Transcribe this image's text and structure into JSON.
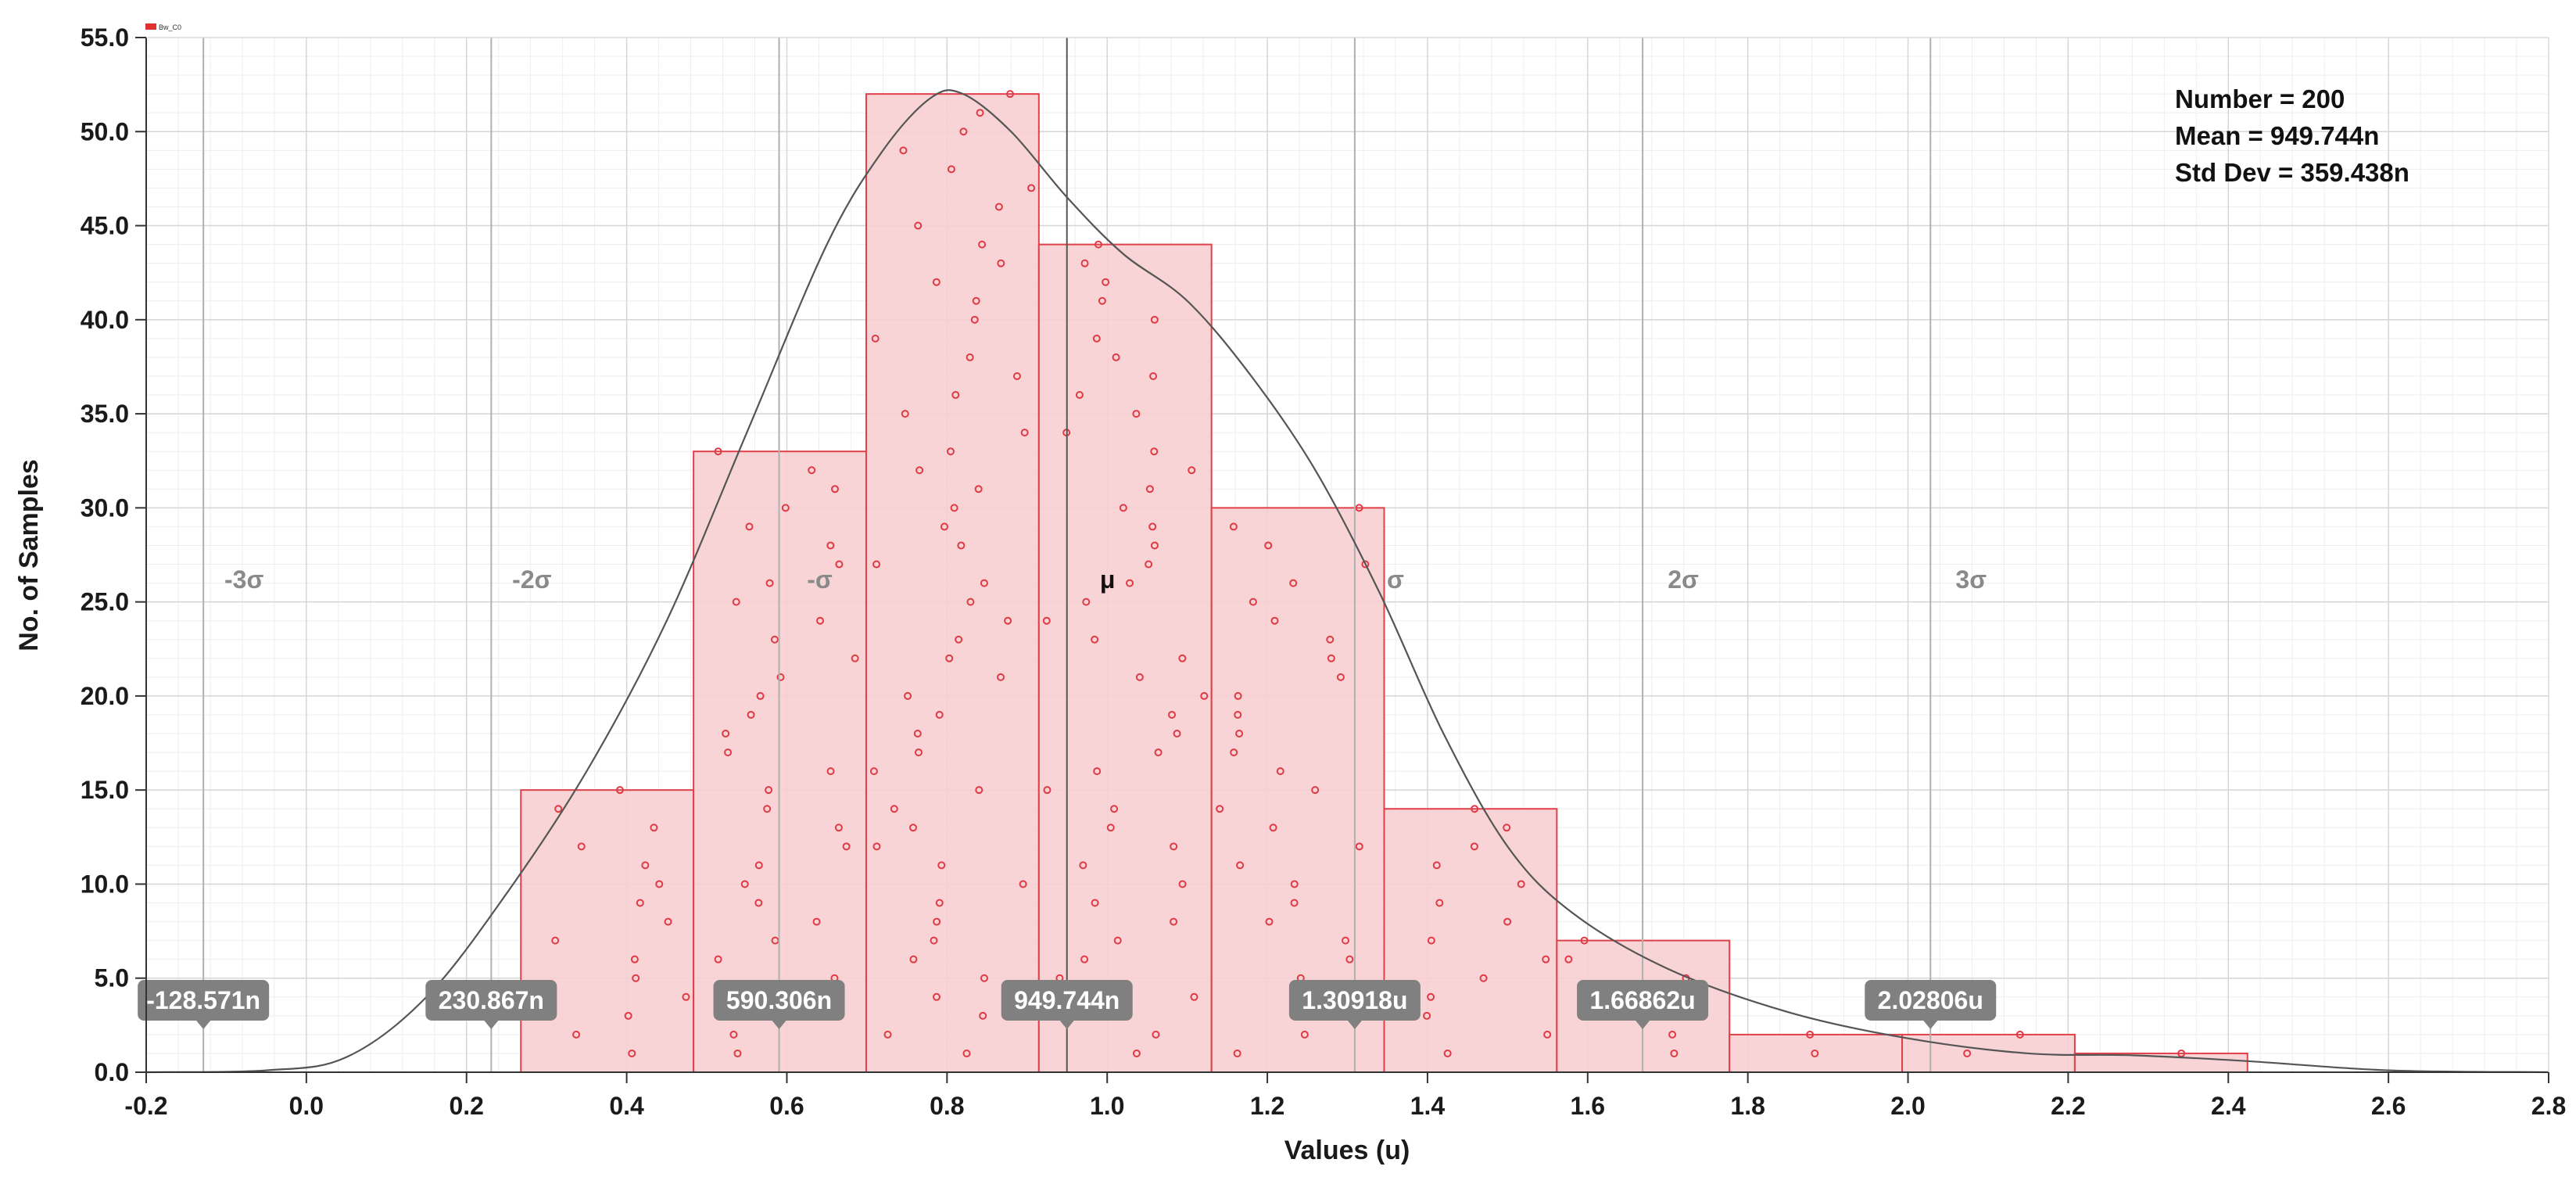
{
  "colors": {
    "bar_fill": "#f7cfd1",
    "bar_stroke": "#e0404a",
    "dot": "#e03a44",
    "curve": "#555555",
    "sigma_line": "#b0b0b0",
    "mean_line": "#555555",
    "badge": "#808080"
  },
  "legend": {
    "label": "Bw_C0",
    "swatch_color": "#e03030"
  },
  "stats": {
    "number_text": "Number = 200",
    "mean_text": "Mean = 949.744n",
    "stddev_text": "Std Dev = 359.438n"
  },
  "chart_data": {
    "type": "bar",
    "xlabel": "Values (u)",
    "ylabel": "No. of Samples",
    "xlim": [
      -0.2,
      2.8
    ],
    "ylim": [
      0.0,
      55.0
    ],
    "x_ticks": [
      -0.2,
      0.0,
      0.2,
      0.4,
      0.6,
      0.8,
      1.0,
      1.2,
      1.4,
      1.6,
      1.8,
      2.0,
      2.2,
      2.4,
      2.6,
      2.8
    ],
    "x_tick_labels": [
      "-0.2",
      "0.0",
      "0.2",
      "0.4",
      "0.6",
      "0.8",
      "1.0",
      "1.2",
      "1.4",
      "1.6",
      "1.8",
      "2.0",
      "2.2",
      "2.4",
      "2.6",
      "2.8"
    ],
    "y_ticks": [
      0,
      5,
      10,
      15,
      20,
      25,
      30,
      35,
      40,
      45,
      50,
      55
    ],
    "y_tick_labels": [
      "0.0",
      "5.0",
      "10.0",
      "15.0",
      "20.0",
      "25.0",
      "30.0",
      "35.0",
      "40.0",
      "45.0",
      "50.0",
      "55.0"
    ],
    "grid": true,
    "bins": [
      {
        "x0": 0.2679,
        "x1": 0.4835,
        "count": 15
      },
      {
        "x0": 0.4835,
        "x1": 0.6991,
        "count": 33
      },
      {
        "x0": 0.6991,
        "x1": 0.9147,
        "count": 52
      },
      {
        "x0": 0.9147,
        "x1": 1.1303,
        "count": 44
      },
      {
        "x0": 1.1303,
        "x1": 1.3459,
        "count": 30
      },
      {
        "x0": 1.3459,
        "x1": 1.5615,
        "count": 14
      },
      {
        "x0": 1.5615,
        "x1": 1.7771,
        "count": 7
      },
      {
        "x0": 1.7771,
        "x1": 1.9927,
        "count": 2
      },
      {
        "x0": 1.9927,
        "x1": 2.2083,
        "count": 2
      },
      {
        "x0": 2.2083,
        "x1": 2.4239,
        "count": 1
      }
    ],
    "sigma_lines": [
      {
        "label": "-3σ",
        "x": -0.128571,
        "value_text": "-128.571n"
      },
      {
        "label": "-2σ",
        "x": 0.230867,
        "value_text": "230.867n"
      },
      {
        "label": "-σ",
        "x": 0.590306,
        "value_text": "590.306n"
      },
      {
        "label": "μ",
        "x": 0.949744,
        "value_text": "949.744n"
      },
      {
        "label": "σ",
        "x": 1.30918,
        "value_text": "1.30918u"
      },
      {
        "label": "2σ",
        "x": 1.66862,
        "value_text": "1.66862u"
      },
      {
        "label": "3σ",
        "x": 2.02806,
        "value_text": "2.02806u"
      }
    ],
    "density_curve": {
      "x": [
        -0.2,
        -0.05,
        0.05,
        0.15,
        0.25,
        0.35,
        0.45,
        0.55,
        0.65,
        0.72,
        0.78,
        0.82,
        0.88,
        0.95,
        1.02,
        1.1,
        1.18,
        1.26,
        1.34,
        1.42,
        1.5,
        1.58,
        1.7,
        1.85,
        2.0,
        2.15,
        2.28,
        2.42,
        2.6,
        2.8
      ],
      "y": [
        0.0,
        0.1,
        0.8,
        4.0,
        9.5,
        16.0,
        24.0,
        34.0,
        44.0,
        49.0,
        51.8,
        52.0,
        50.0,
        46.5,
        43.5,
        41.0,
        37.0,
        32.0,
        25.5,
        18.0,
        12.0,
        8.5,
        5.5,
        3.2,
        1.8,
        1.0,
        0.9,
        0.6,
        0.1,
        0.0
      ]
    }
  }
}
